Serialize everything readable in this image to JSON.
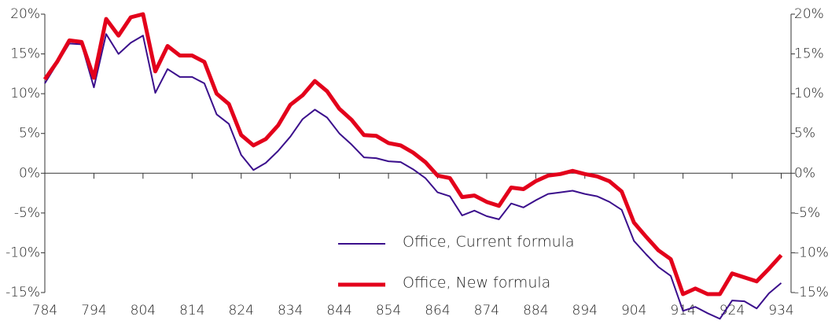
{
  "chart_data": {
    "type": "line",
    "x": [
      784,
      786.5,
      789,
      791.5,
      794,
      796.5,
      799,
      801.5,
      804,
      806.5,
      809,
      811.5,
      814,
      816.5,
      819,
      821.5,
      824,
      826.5,
      829,
      831.5,
      834,
      836.5,
      839,
      841.5,
      844,
      846.5,
      849,
      851.5,
      854,
      856.5,
      859,
      861.5,
      864,
      866.5,
      869,
      871.5,
      874,
      876.5,
      879,
      881.5,
      884,
      886.5,
      889,
      891.5,
      894,
      896.5,
      899,
      901.5,
      904,
      906.5,
      909,
      911.5,
      914,
      916.5,
      919,
      921.5,
      924,
      926.5,
      929,
      931.5,
      934
    ],
    "series": [
      {
        "name": "Office, Current formula",
        "color": "#3b0f8c",
        "values": [
          11.3,
          13.8,
          16.3,
          16.2,
          10.8,
          17.5,
          15.0,
          16.4,
          17.3,
          10.1,
          13.1,
          12.1,
          12.1,
          11.3,
          7.4,
          6.2,
          2.3,
          0.4,
          1.3,
          2.8,
          4.6,
          6.8,
          8.0,
          7.0,
          5.0,
          3.6,
          2.0,
          1.9,
          1.5,
          1.4,
          0.5,
          -0.6,
          -2.4,
          -2.9,
          -5.3,
          -4.7,
          -5.4,
          -5.8,
          -3.8,
          -4.3,
          -3.4,
          -2.6,
          -2.4,
          -2.2,
          -2.6,
          -2.9,
          -3.6,
          -4.6,
          -8.5,
          -10.2,
          -11.8,
          -12.9,
          -17.3,
          -16.8,
          -17.6,
          -18.3,
          -16.0,
          -16.1,
          -17.0,
          -15.1,
          -13.8
        ]
      },
      {
        "name": "Office, New formula",
        "color": "#e3001b",
        "values": [
          11.8,
          14.0,
          16.7,
          16.5,
          12.0,
          19.4,
          17.3,
          19.6,
          20.0,
          12.8,
          16.0,
          14.8,
          14.8,
          14.0,
          10.0,
          8.7,
          4.8,
          3.5,
          4.3,
          6.0,
          8.6,
          9.8,
          11.6,
          10.3,
          8.1,
          6.7,
          4.8,
          4.7,
          3.8,
          3.5,
          2.6,
          1.4,
          -0.3,
          -0.6,
          -3.0,
          -2.8,
          -3.6,
          -4.1,
          -1.8,
          -2.0,
          -1.0,
          -0.3,
          -0.1,
          0.3,
          -0.1,
          -0.4,
          -1.0,
          -2.3,
          -6.2,
          -8.0,
          -9.7,
          -10.8,
          -15.2,
          -14.5,
          -15.2,
          -15.2,
          -12.6,
          -13.1,
          -13.6,
          -12.0,
          -10.3
        ]
      }
    ],
    "xlim": [
      784,
      936
    ],
    "xticks": [
      784,
      794,
      804,
      814,
      824,
      834,
      844,
      854,
      864,
      874,
      884,
      894,
      904,
      914,
      924,
      934
    ],
    "ylim": [
      -15,
      20
    ],
    "yticks": [
      {
        "value": -15,
        "label": "-15%"
      },
      {
        "value": -10,
        "label": "-10%"
      },
      {
        "value": -5,
        "label": "-5%"
      },
      {
        "value": 0,
        "label": "0%"
      },
      {
        "value": 5,
        "label": "5%"
      },
      {
        "value": 10,
        "label": "10%"
      },
      {
        "value": 15,
        "label": "15%"
      },
      {
        "value": 20,
        "label": "20%"
      }
    ],
    "legend": "bottom-center"
  }
}
